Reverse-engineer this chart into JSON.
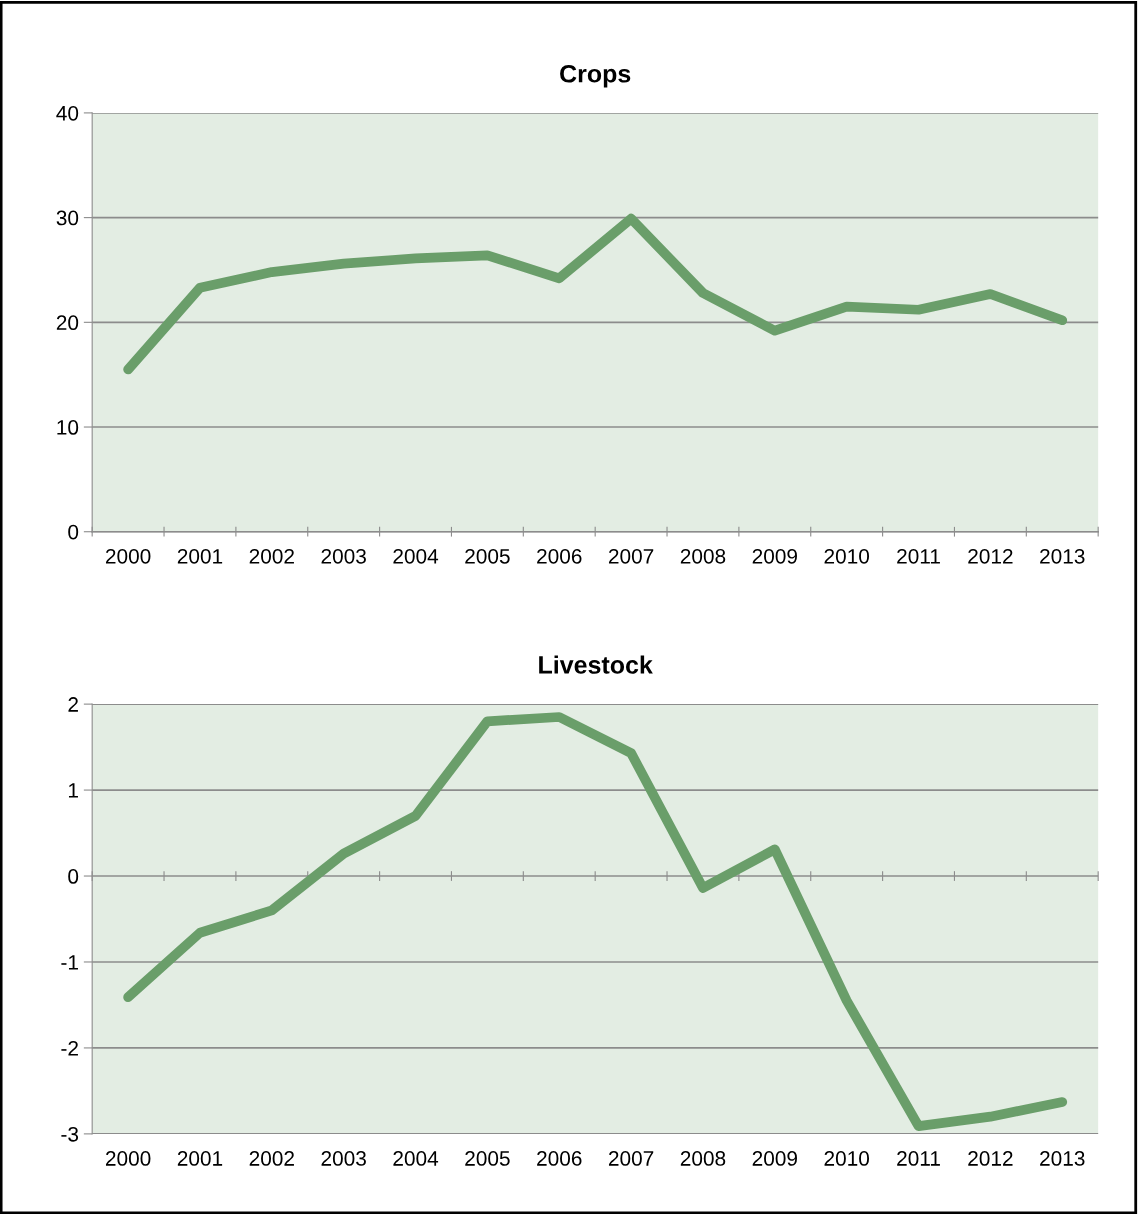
{
  "chart_data": [
    {
      "type": "line",
      "title": "Crops",
      "categories": [
        "2000",
        "2001",
        "2002",
        "2003",
        "2004",
        "2005",
        "2006",
        "2007",
        "2008",
        "2009",
        "2010",
        "2011",
        "2012",
        "2013"
      ],
      "series": [
        {
          "color": "#6a9e6a",
          "values": [
            15.5,
            23.3,
            24.8,
            25.6,
            26.1,
            26.4,
            24.2,
            29.9,
            22.8,
            19.2,
            21.5,
            21.2,
            22.7,
            20.2
          ]
        }
      ],
      "ylim": [
        0,
        40
      ],
      "yticks": [
        0,
        10,
        20,
        30,
        40
      ],
      "grid": "y",
      "marker": "none",
      "line_style": "solid"
    },
    {
      "type": "line",
      "title": "Livestock",
      "categories": [
        "2000",
        "2001",
        "2002",
        "2003",
        "2004",
        "2005",
        "2006",
        "2007",
        "2008",
        "2009",
        "2010",
        "2011",
        "2012",
        "2013"
      ],
      "series": [
        {
          "color": "#6a9e6a",
          "values": [
            -1.41,
            -0.66,
            -0.4,
            0.26,
            0.7,
            1.8,
            1.85,
            1.43,
            -0.14,
            0.31,
            -1.45,
            -2.91,
            -2.8,
            -2.63
          ]
        }
      ],
      "ylim": [
        -3,
        2
      ],
      "yticks": [
        -3,
        -2,
        -1,
        0,
        1,
        2
      ],
      "grid": "y",
      "marker": "none",
      "line_style": "solid"
    }
  ]
}
